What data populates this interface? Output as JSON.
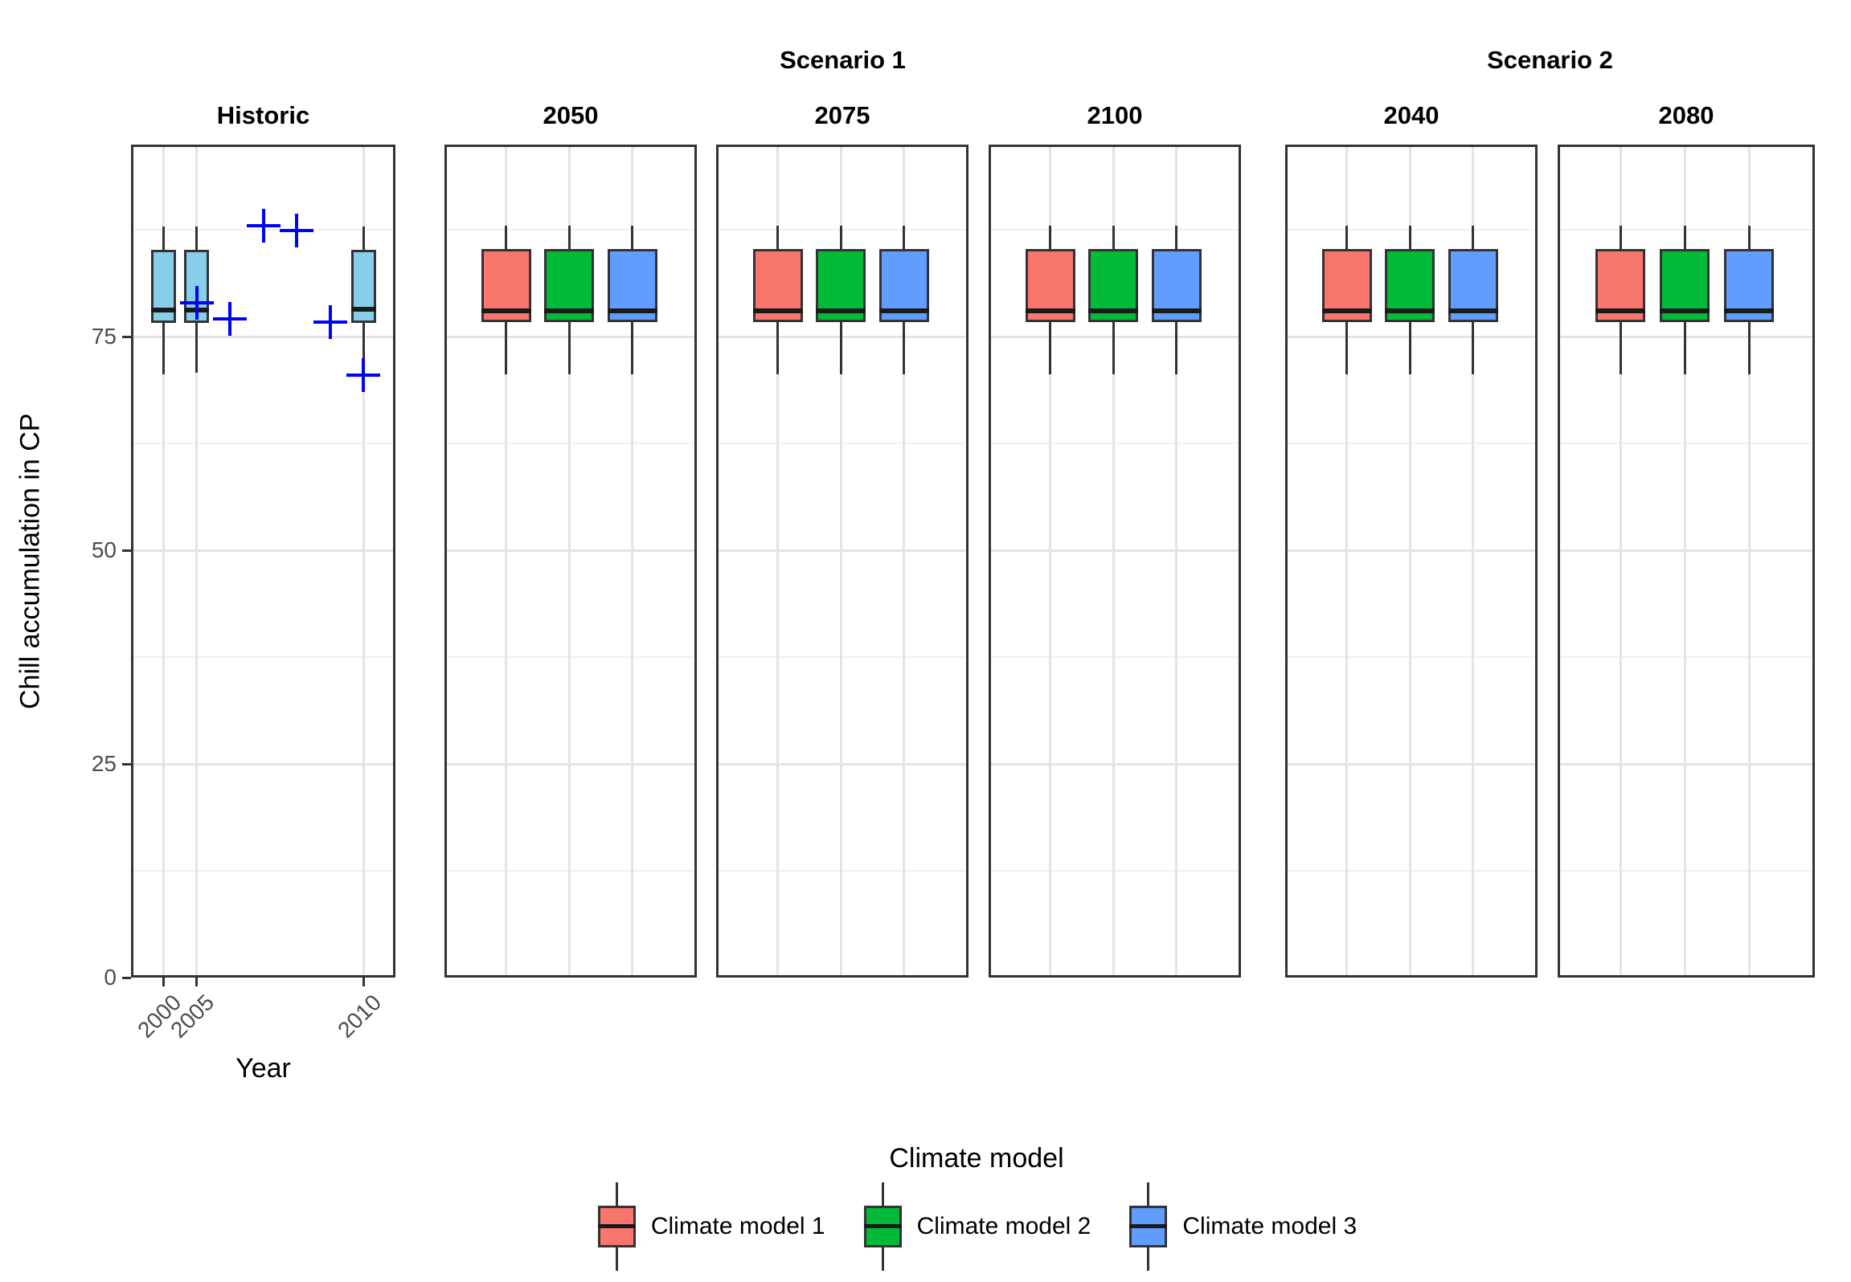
{
  "chart_data": {
    "type": "boxplot",
    "ylabel": "Chill accumulation in CP",
    "xlabel": "Year",
    "ylim": [
      0,
      97.5
    ],
    "y_major_ticks": [
      0,
      25,
      50,
      75
    ],
    "y_minor_ticks": [
      12.5,
      37.5,
      62.5,
      87.5
    ],
    "grid": true,
    "legend": {
      "title": "Climate model",
      "position": "bottom",
      "entries": [
        {
          "label": "Climate model 1",
          "color": "#F8766D"
        },
        {
          "label": "Climate model 2",
          "color": "#00BA38"
        },
        {
          "label": "Climate model 3",
          "color": "#619CFF"
        }
      ]
    },
    "colors": {
      "historic_box": "#87CEEB",
      "observed_point": "#0000FF",
      "box_border": "#333333",
      "median_line": "#1A1A1A",
      "grid_major": "#E4E4E4",
      "grid_minor": "#F1F1F1",
      "tick_label": "#4D4D4D",
      "panel_border": "#333333"
    },
    "group_headers": [
      {
        "label": "Scenario 1",
        "panels": [
          "2050",
          "2075",
          "2100"
        ]
      },
      {
        "label": "Scenario 2",
        "panels": [
          "2040",
          "2080"
        ]
      }
    ],
    "panels": [
      {
        "label": "Historic",
        "n_slots": 7,
        "x_ticks": [
          {
            "slot": 0,
            "label": "2000"
          },
          {
            "slot": 1,
            "label": "2005"
          },
          {
            "slot": 6,
            "label": "2010"
          }
        ],
        "boxes": [
          {
            "slot": 0,
            "color": "#87CEEB",
            "low": 70.6,
            "q1": 76.6,
            "median": 78.1,
            "q3": 85.2,
            "high": 87.9
          },
          {
            "slot": 1,
            "color": "#87CEEB",
            "low": 70.8,
            "q1": 76.6,
            "median": 78.1,
            "q3": 85.2,
            "high": 87.9
          },
          {
            "slot": 6,
            "color": "#87CEEB",
            "low": 69.2,
            "q1": 76.6,
            "median": 78.2,
            "q3": 85.2,
            "high": 87.9
          }
        ],
        "points": [
          {
            "slot": 1,
            "value": 79.0
          },
          {
            "slot": 2,
            "value": 77.1
          },
          {
            "slot": 3,
            "value": 88.0
          },
          {
            "slot": 4,
            "value": 87.4
          },
          {
            "slot": 5,
            "value": 76.7
          },
          {
            "slot": 6,
            "value": 70.5
          }
        ]
      },
      {
        "label": "2050",
        "n_slots": 3,
        "x_ticks": [],
        "boxes": [
          {
            "slot": 0,
            "series": "Climate model 1",
            "color": "#F8766D",
            "low": 70.6,
            "q1": 76.7,
            "median": 78.0,
            "q3": 85.3,
            "high": 88.0
          },
          {
            "slot": 1,
            "series": "Climate model 2",
            "color": "#00BA38",
            "low": 70.6,
            "q1": 76.7,
            "median": 78.0,
            "q3": 85.3,
            "high": 88.0
          },
          {
            "slot": 2,
            "series": "Climate model 3",
            "color": "#619CFF",
            "low": 70.6,
            "q1": 76.7,
            "median": 78.0,
            "q3": 85.3,
            "high": 88.0
          }
        ],
        "points": []
      },
      {
        "label": "2075",
        "n_slots": 3,
        "x_ticks": [],
        "boxes": [
          {
            "slot": 0,
            "series": "Climate model 1",
            "color": "#F8766D",
            "low": 70.6,
            "q1": 76.7,
            "median": 78.0,
            "q3": 85.3,
            "high": 88.0
          },
          {
            "slot": 1,
            "series": "Climate model 2",
            "color": "#00BA38",
            "low": 70.6,
            "q1": 76.7,
            "median": 78.0,
            "q3": 85.3,
            "high": 88.0
          },
          {
            "slot": 2,
            "series": "Climate model 3",
            "color": "#619CFF",
            "low": 70.6,
            "q1": 76.7,
            "median": 78.0,
            "q3": 85.3,
            "high": 88.0
          }
        ],
        "points": []
      },
      {
        "label": "2100",
        "n_slots": 3,
        "x_ticks": [],
        "boxes": [
          {
            "slot": 0,
            "series": "Climate model 1",
            "color": "#F8766D",
            "low": 70.6,
            "q1": 76.7,
            "median": 78.0,
            "q3": 85.3,
            "high": 88.0
          },
          {
            "slot": 1,
            "series": "Climate model 2",
            "color": "#00BA38",
            "low": 70.6,
            "q1": 76.7,
            "median": 78.0,
            "q3": 85.3,
            "high": 88.0
          },
          {
            "slot": 2,
            "series": "Climate model 3",
            "color": "#619CFF",
            "low": 70.6,
            "q1": 76.7,
            "median": 78.0,
            "q3": 85.3,
            "high": 88.0
          }
        ],
        "points": []
      },
      {
        "label": "2040",
        "n_slots": 3,
        "x_ticks": [],
        "boxes": [
          {
            "slot": 0,
            "series": "Climate model 1",
            "color": "#F8766D",
            "low": 70.6,
            "q1": 76.7,
            "median": 78.0,
            "q3": 85.3,
            "high": 88.0
          },
          {
            "slot": 1,
            "series": "Climate model 2",
            "color": "#00BA38",
            "low": 70.6,
            "q1": 76.7,
            "median": 78.0,
            "q3": 85.3,
            "high": 88.0
          },
          {
            "slot": 2,
            "series": "Climate model 3",
            "color": "#619CFF",
            "low": 70.6,
            "q1": 76.7,
            "median": 78.0,
            "q3": 85.3,
            "high": 88.0
          }
        ],
        "points": []
      },
      {
        "label": "2080",
        "n_slots": 3,
        "x_ticks": [],
        "boxes": [
          {
            "slot": 0,
            "series": "Climate model 1",
            "color": "#F8766D",
            "low": 70.6,
            "q1": 76.7,
            "median": 78.0,
            "q3": 85.3,
            "high": 88.0
          },
          {
            "slot": 1,
            "series": "Climate model 2",
            "color": "#00BA38",
            "low": 70.6,
            "q1": 76.7,
            "median": 78.0,
            "q3": 85.3,
            "high": 88.0
          },
          {
            "slot": 2,
            "series": "Climate model 3",
            "color": "#619CFF",
            "low": 70.6,
            "q1": 76.7,
            "median": 78.0,
            "q3": 85.3,
            "high": 88.0
          }
        ],
        "points": []
      }
    ]
  }
}
